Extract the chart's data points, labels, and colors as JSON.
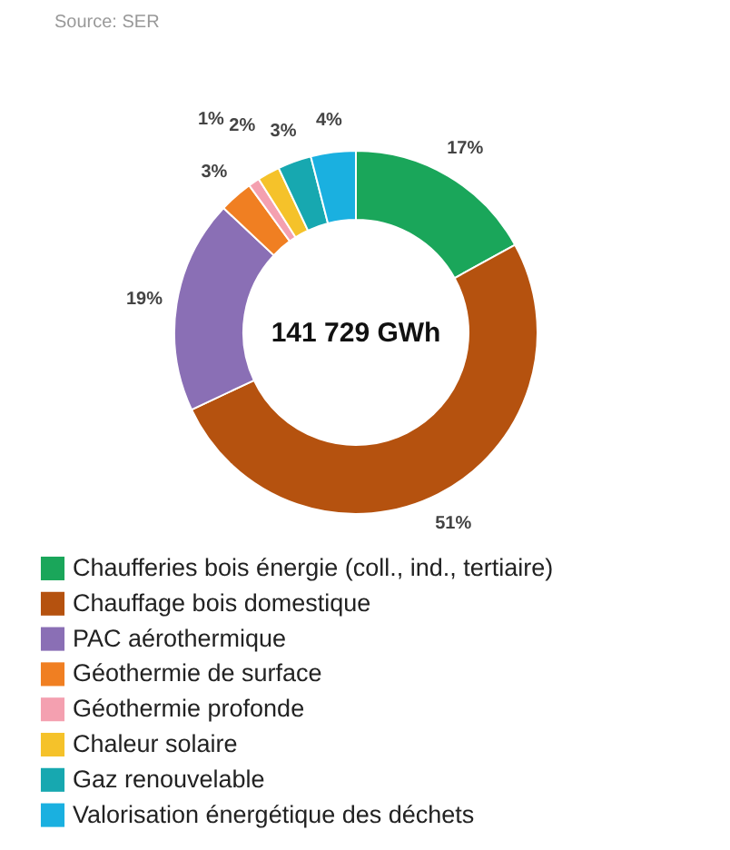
{
  "chart_data": {
    "type": "donut",
    "categories": [
      "Chaufferies bois énergie (coll., ind., tertiaire)",
      "Chauffage bois domestique",
      "PAC aérothermique",
      "Géothermie de surface",
      "Géothermie profonde",
      "Chaleur solaire",
      "Gaz renouvelable",
      "Valorisation énergétique des déchets"
    ],
    "values": [
      17,
      51,
      19,
      3,
      1,
      2,
      3,
      4
    ],
    "colors": [
      "#1aa65a",
      "#b5520f",
      "#8a6fb5",
      "#f07f22",
      "#f4a0b0",
      "#f5c22a",
      "#17a8b0",
      "#1ab0e0"
    ],
    "value_labels": [
      "17%",
      "51%",
      "19%",
      "3%",
      "1%",
      "2%",
      "3%",
      "4%"
    ],
    "annotations": [
      "Source: SER",
      "141 729 GWh"
    ],
    "legend": "bottom"
  }
}
